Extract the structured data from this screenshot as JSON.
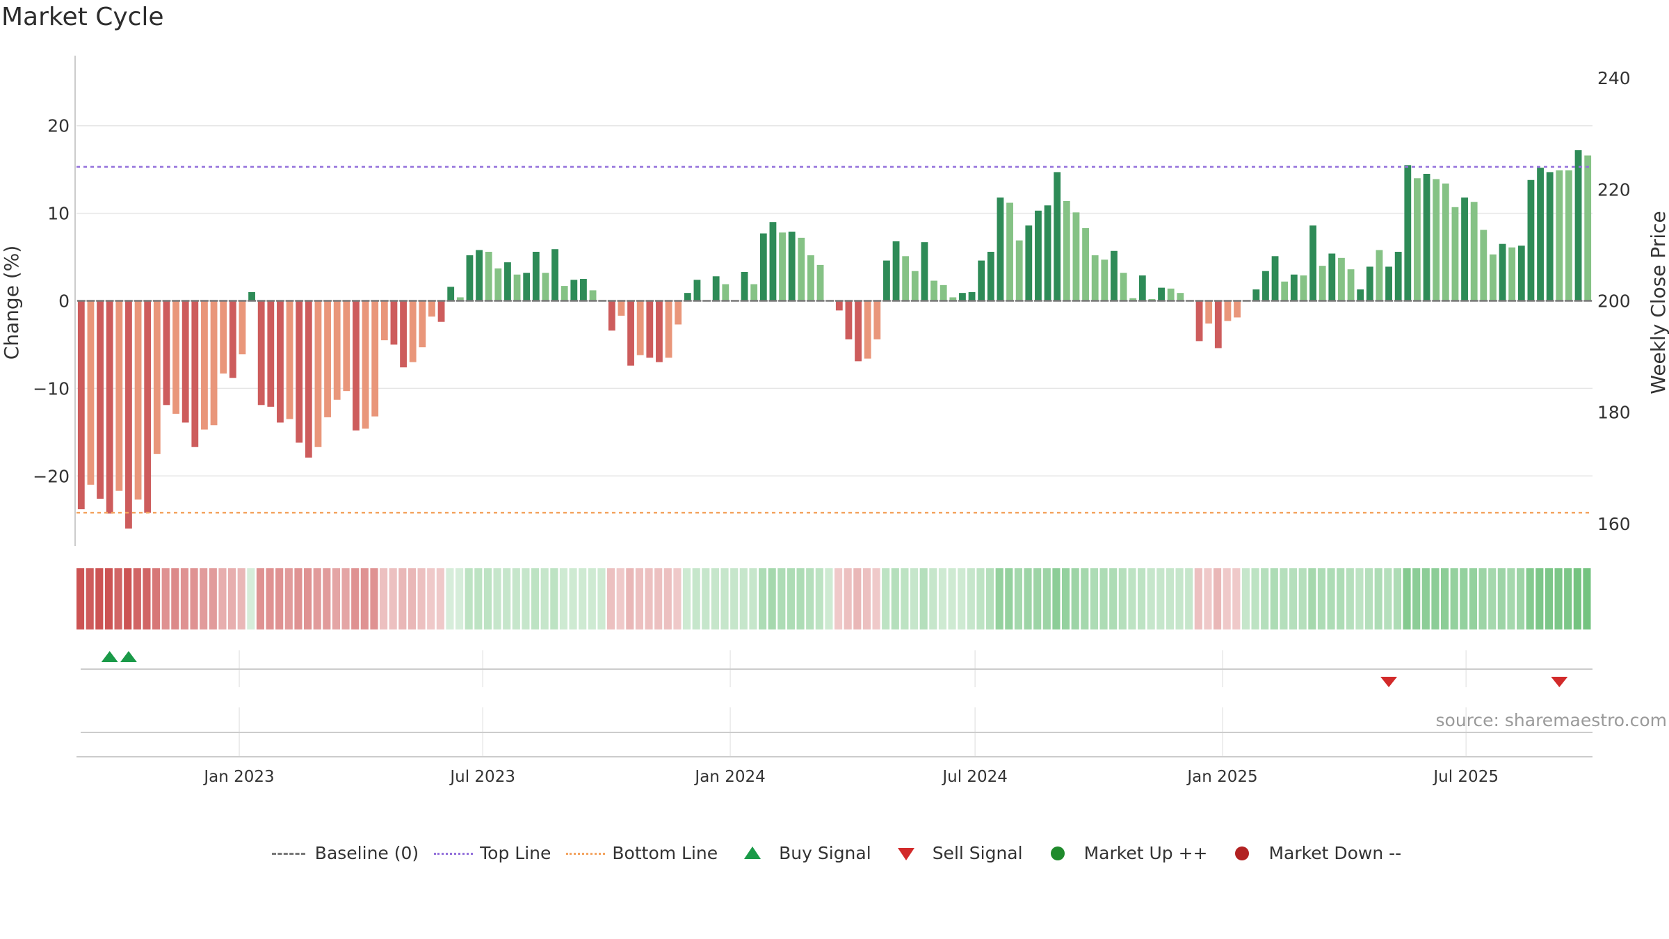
{
  "title": "Market Cycle",
  "source": "source: sharemaestro.com",
  "colors": {
    "strong_up": "#2e8b57",
    "weak_up": "#85c285",
    "strong_down": "#cd5c5c",
    "weak_down": "#e9967a",
    "top_line": "#9370db",
    "bottom_line": "#f4a460",
    "baseline": "#777777",
    "buy": "#1a9a48",
    "sell": "#d22a2a",
    "market_up": "#1f8a2c",
    "market_down": "#b22222"
  },
  "legend": [
    {
      "key": "baseline",
      "label": "Baseline (0)",
      "icon": "dash-line-icon"
    },
    {
      "key": "top_line",
      "label": "Top Line",
      "icon": "dotted-line-icon"
    },
    {
      "key": "bottom_line",
      "label": "Bottom Line",
      "icon": "dotted-line-icon"
    },
    {
      "key": "buy",
      "label": "Buy Signal",
      "icon": "triangle-up-icon"
    },
    {
      "key": "sell",
      "label": "Sell Signal",
      "icon": "triangle-down-icon"
    },
    {
      "key": "market_up",
      "label": "Market Up ++",
      "icon": "dot-icon"
    },
    {
      "key": "market_down",
      "label": "Market Down --",
      "icon": "dot-icon"
    }
  ],
  "chart_data": {
    "type": "bar",
    "ylabel": "Change (%)",
    "y2label": "Weekly Close Price",
    "ylim": [
      -28,
      28
    ],
    "y2lim": [
      156,
      244
    ],
    "yticks": [
      -20,
      -10,
      0,
      10,
      20
    ],
    "y2ticks": [
      160,
      180,
      200,
      220,
      240
    ],
    "top_line": 15.3,
    "bottom_line": -24.2,
    "x_start": "2022-09-02",
    "x_end": "2025-10-03",
    "xticks": [
      {
        "date": "2023-01-01",
        "label": "Jan 2023"
      },
      {
        "date": "2023-07-01",
        "label": "Jul 2023"
      },
      {
        "date": "2024-01-01",
        "label": "Jan 2024"
      },
      {
        "date": "2024-07-01",
        "label": "Jul 2024"
      },
      {
        "date": "2025-01-01",
        "label": "Jan 2025"
      },
      {
        "date": "2025-07-01",
        "label": "Jul 2025"
      }
    ],
    "series": [
      {
        "values": [
          -23.8,
          -21.0,
          -22.6,
          -24.3,
          -21.7,
          -26.0,
          -22.7,
          -24.2,
          -17.5,
          -11.9,
          -12.9,
          -13.9,
          -16.7,
          -14.7,
          -14.2,
          -8.3,
          -8.8,
          -6.1,
          1.0,
          -11.9,
          -12.1,
          -13.9,
          -13.5,
          -16.2,
          -17.9,
          -16.7,
          -13.3,
          -11.3,
          -10.3,
          -14.8,
          -14.6,
          -13.2,
          -4.5,
          -5.0,
          -7.6,
          -7.0,
          -5.3,
          -1.8,
          -2.4,
          1.6,
          0.4,
          5.2,
          5.8,
          5.6,
          3.7,
          4.4,
          3.0,
          3.2,
          5.6,
          3.2,
          5.9,
          1.7,
          2.4,
          2.5,
          1.2,
          0,
          -3.4,
          -1.7,
          -7.4,
          -6.2,
          -6.5,
          -7.0,
          -6.5,
          -2.7,
          0.9,
          2.4,
          0,
          2.8,
          1.9,
          0,
          3.3,
          1.9,
          7.7,
          9.0,
          7.8,
          7.9,
          7.2,
          5.2,
          4.1,
          0,
          -1.1,
          -4.4,
          -6.9,
          -6.6,
          -4.4,
          4.6,
          6.8,
          5.1,
          3.4,
          6.7,
          2.3,
          1.8,
          0.4,
          0.9,
          1.0,
          4.6,
          5.6,
          11.8,
          11.2,
          6.9,
          8.6,
          10.3,
          10.9,
          14.7,
          11.4,
          10.1,
          8.3,
          5.2,
          4.7,
          5.7,
          3.2,
          0.3,
          2.9,
          0.2,
          1.5,
          1.4,
          0.9,
          0,
          -4.6,
          -2.6,
          -5.4,
          -2.3,
          -1.9,
          0,
          1.3,
          3.4,
          5.1,
          2.2,
          3.0,
          2.9,
          8.6,
          4.0,
          5.4,
          4.9,
          3.6,
          1.3,
          3.9,
          5.8,
          3.9,
          5.6,
          15.5,
          14.0,
          14.5,
          13.9,
          13.4,
          10.7,
          11.8,
          11.3,
          8.1,
          5.3,
          6.5,
          6.1,
          6.3,
          13.8,
          15.2,
          14.7,
          14.9,
          14.9,
          17.2,
          16.6
        ],
        "strength": [
          "s",
          "w",
          "s",
          "s",
          "w",
          "s",
          "w",
          "s",
          "w",
          "s",
          "w",
          "s",
          "s",
          "w",
          "w",
          "w",
          "s",
          "w",
          "s",
          "s",
          "s",
          "s",
          "w",
          "s",
          "s",
          "w",
          "w",
          "w",
          "w",
          "s",
          "w",
          "w",
          "w",
          "s",
          "s",
          "w",
          "w",
          "w",
          "s",
          "s",
          "w",
          "s",
          "s",
          "w",
          "w",
          "s",
          "w",
          "s",
          "s",
          "w",
          "s",
          "w",
          "s",
          "s",
          "w",
          "s",
          "s",
          "w",
          "s",
          "w",
          "s",
          "s",
          "w",
          "w",
          "s",
          "s",
          "s",
          "s",
          "w",
          "s",
          "s",
          "w",
          "s",
          "s",
          "w",
          "s",
          "w",
          "w",
          "w",
          "s",
          "s",
          "s",
          "s",
          "w",
          "w",
          "s",
          "s",
          "w",
          "w",
          "s",
          "w",
          "w",
          "w",
          "s",
          "s",
          "s",
          "s",
          "s",
          "w",
          "w",
          "s",
          "s",
          "s",
          "s",
          "w",
          "w",
          "w",
          "w",
          "w",
          "s",
          "w",
          "w",
          "s",
          "w",
          "s",
          "w",
          "w",
          "w",
          "s",
          "w",
          "s",
          "w",
          "w",
          "s",
          "s",
          "s",
          "s",
          "w",
          "s",
          "w",
          "s",
          "w",
          "s",
          "w",
          "w",
          "s",
          "s",
          "w",
          "s",
          "s",
          "s",
          "w",
          "s",
          "w",
          "w",
          "w",
          "s",
          "w",
          "w",
          "w",
          "s",
          "w",
          "s",
          "s",
          "s",
          "s",
          "w",
          "w",
          "s",
          "w"
        ]
      }
    ],
    "strip_intensity": [
      0.95,
      0.9,
      0.95,
      0.95,
      0.85,
      0.95,
      0.85,
      0.85,
      0.75,
      0.6,
      0.65,
      0.6,
      0.6,
      0.55,
      0.55,
      0.45,
      0.45,
      0.4,
      0.25,
      0.6,
      0.6,
      0.6,
      0.55,
      0.6,
      0.6,
      0.55,
      0.55,
      0.5,
      0.5,
      0.6,
      0.6,
      0.6,
      0.35,
      0.35,
      0.4,
      0.4,
      0.35,
      0.3,
      0.3,
      0.25,
      0.25,
      0.4,
      0.4,
      0.4,
      0.35,
      0.35,
      0.35,
      0.35,
      0.4,
      0.35,
      0.4,
      0.3,
      0.3,
      0.3,
      0.3,
      0.3,
      0.35,
      0.3,
      0.4,
      0.35,
      0.35,
      0.35,
      0.35,
      0.3,
      0.3,
      0.35,
      0.35,
      0.35,
      0.35,
      0.35,
      0.35,
      0.35,
      0.5,
      0.55,
      0.5,
      0.5,
      0.5,
      0.45,
      0.4,
      0.3,
      0.3,
      0.35,
      0.4,
      0.35,
      0.3,
      0.4,
      0.45,
      0.4,
      0.35,
      0.45,
      0.35,
      0.3,
      0.3,
      0.3,
      0.35,
      0.4,
      0.45,
      0.65,
      0.65,
      0.55,
      0.6,
      0.6,
      0.6,
      0.7,
      0.65,
      0.6,
      0.55,
      0.5,
      0.5,
      0.5,
      0.45,
      0.4,
      0.4,
      0.35,
      0.35,
      0.35,
      0.35,
      0.35,
      0.35,
      0.3,
      0.4,
      0.3,
      0.3,
      0.35,
      0.4,
      0.45,
      0.5,
      0.45,
      0.45,
      0.45,
      0.55,
      0.5,
      0.5,
      0.5,
      0.45,
      0.4,
      0.45,
      0.5,
      0.45,
      0.5,
      0.75,
      0.7,
      0.7,
      0.7,
      0.7,
      0.65,
      0.65,
      0.65,
      0.6,
      0.55,
      0.6,
      0.55,
      0.6,
      0.75,
      0.8,
      0.8,
      0.8,
      0.8,
      0.85,
      0.85
    ],
    "buy_signals": [
      3,
      5
    ],
    "sell_signals": [
      138,
      156
    ]
  }
}
